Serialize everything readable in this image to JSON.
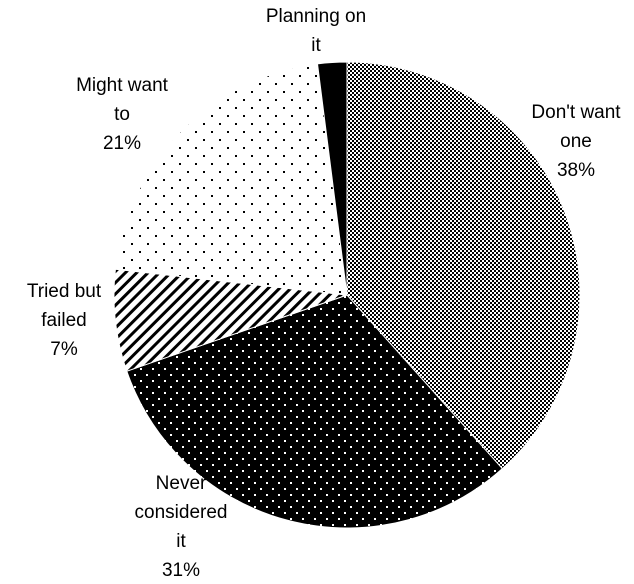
{
  "chart_data": {
    "type": "pie",
    "title": "",
    "start_angle_deg": 0,
    "direction": "clockwise",
    "legend": "none",
    "slices": [
      {
        "label_lines": [
          "Don't want",
          "one"
        ],
        "value": 38,
        "value_label": "38%",
        "pattern": "checker"
      },
      {
        "label_lines": [
          "Never",
          "considered",
          "it"
        ],
        "value": 31,
        "value_label": "31%",
        "pattern": "dots-on-black"
      },
      {
        "label_lines": [
          "Tried but",
          "failed"
        ],
        "value": 7,
        "value_label": "7%",
        "pattern": "diagonal-stripes"
      },
      {
        "label_lines": [
          "Might want",
          "to"
        ],
        "value": 21,
        "value_label": "21%",
        "pattern": "dots-on-white"
      },
      {
        "label_lines": [
          "Planning on",
          "it"
        ],
        "value": 2,
        "value_label": "",
        "pattern": "solid-black"
      }
    ]
  }
}
